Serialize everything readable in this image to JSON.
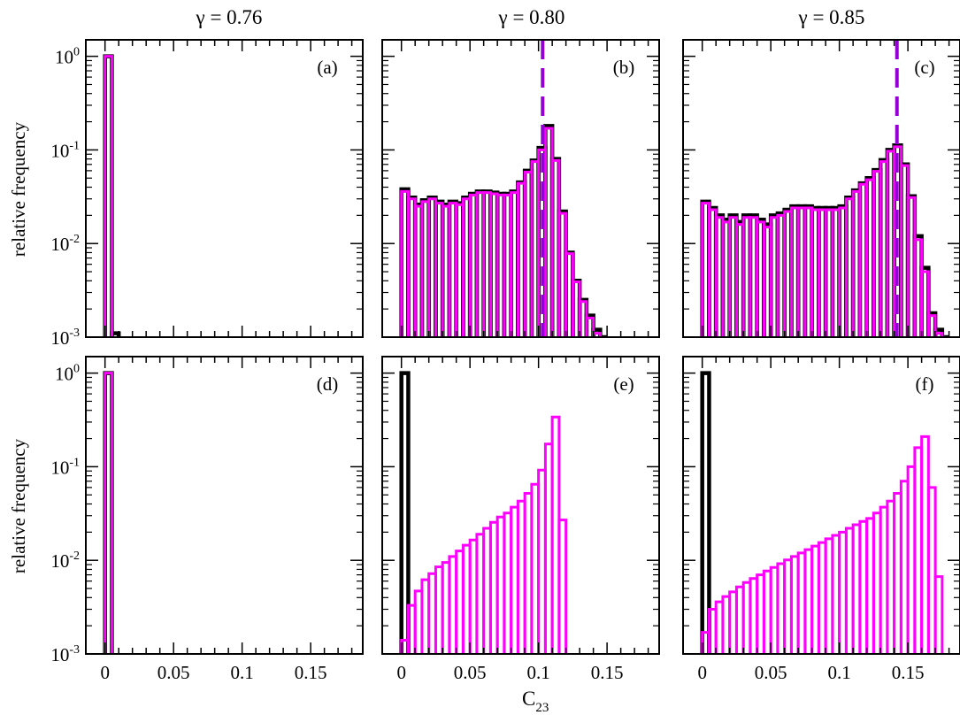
{
  "chart_data": {
    "type": "histogram-grid",
    "column_titles": [
      "γ = 0.76",
      "γ = 0.80",
      "γ = 0.85"
    ],
    "ylabel": "relative frequency",
    "xlabel": "C",
    "xlabel_subscript": "23",
    "yscale": "log",
    "ylim": [
      0.001,
      1.5
    ],
    "xlim": [
      -0.014,
      0.188
    ],
    "xticks": [
      0,
      0.05,
      0.1,
      0.15
    ],
    "xtick_labels": [
      "0",
      "0.05",
      "0.1",
      "0.15"
    ],
    "yticks": [
      0.001,
      0.01,
      0.1,
      1
    ],
    "ytick_labels": [
      {
        "base": "10",
        "exp": "-3"
      },
      {
        "base": "10",
        "exp": "-2"
      },
      {
        "base": "10",
        "exp": "-1"
      },
      {
        "base": "10",
        "exp": "0"
      }
    ],
    "bin_width": 0.005,
    "colors": {
      "black_series": "#000000",
      "magenta_series": "#ff00ff",
      "marker_line": "#9400d3"
    },
    "panels": [
      {
        "label": "(a)",
        "row": 0,
        "col": 0,
        "series": [
          {
            "color": "black",
            "values": [
              1.0,
              0.0011
            ]
          },
          {
            "color": "magenta",
            "values": [
              1.0
            ]
          }
        ]
      },
      {
        "label": "(b)",
        "row": 0,
        "col": 1,
        "vline": 0.103,
        "series": [
          {
            "color": "black",
            "values": [
              0.038,
              0.031,
              0.026,
              0.029,
              0.031,
              0.028,
              0.026,
              0.028,
              0.027,
              0.031,
              0.034,
              0.036,
              0.036,
              0.035,
              0.034,
              0.034,
              0.036,
              0.045,
              0.06,
              0.077,
              0.105,
              0.18,
              0.08,
              0.022,
              0.008,
              0.004,
              0.0025,
              0.0017,
              0.0012,
              0.001
            ]
          },
          {
            "color": "magenta",
            "values": [
              0.036,
              0.03,
              0.025,
              0.028,
              0.03,
              0.027,
              0.025,
              0.027,
              0.026,
              0.03,
              0.033,
              0.035,
              0.035,
              0.034,
              0.033,
              0.033,
              0.035,
              0.044,
              0.058,
              0.075,
              0.1,
              0.17,
              0.077,
              0.021,
              0.0078,
              0.0039,
              0.0024,
              0.0016,
              0.0011
            ]
          }
        ]
      },
      {
        "label": "(c)",
        "row": 0,
        "col": 2,
        "vline": 0.142,
        "series": [
          {
            "color": "black",
            "values": [
              0.028,
              0.024,
              0.02,
              0.018,
              0.02,
              0.017,
              0.02,
              0.02,
              0.018,
              0.016,
              0.02,
              0.021,
              0.023,
              0.025,
              0.025,
              0.025,
              0.024,
              0.024,
              0.024,
              0.024,
              0.025,
              0.031,
              0.037,
              0.044,
              0.05,
              0.061,
              0.078,
              0.1,
              0.112,
              0.07,
              0.032,
              0.012,
              0.0055,
              0.0018,
              0.0012,
              0.001
            ]
          },
          {
            "color": "magenta",
            "values": [
              0.027,
              0.023,
              0.019,
              0.017,
              0.019,
              0.016,
              0.019,
              0.019,
              0.017,
              0.015,
              0.019,
              0.02,
              0.022,
              0.024,
              0.024,
              0.024,
              0.023,
              0.023,
              0.023,
              0.023,
              0.024,
              0.03,
              0.036,
              0.043,
              0.048,
              0.059,
              0.075,
              0.097,
              0.108,
              0.068,
              0.031,
              0.011,
              0.005,
              0.0017,
              0.0011
            ]
          }
        ]
      },
      {
        "label": "(d)",
        "row": 1,
        "col": 0,
        "series": [
          {
            "color": "black",
            "values": [
              1.0
            ]
          },
          {
            "color": "magenta",
            "values": [
              1.0
            ]
          }
        ]
      },
      {
        "label": "(e)",
        "row": 1,
        "col": 1,
        "series": [
          {
            "color": "black",
            "values": [
              1.0
            ]
          },
          {
            "color": "magenta",
            "values": [
              0.0014,
              0.0033,
              0.0047,
              0.0062,
              0.0072,
              0.0085,
              0.0095,
              0.011,
              0.0126,
              0.0145,
              0.0165,
              0.019,
              0.022,
              0.0255,
              0.029,
              0.032,
              0.037,
              0.043,
              0.052,
              0.065,
              0.092,
              0.175,
              0.34,
              0.027
            ]
          }
        ]
      },
      {
        "label": "(f)",
        "row": 1,
        "col": 2,
        "series": [
          {
            "color": "black",
            "values": [
              1.0
            ]
          },
          {
            "color": "magenta",
            "values": [
              0.0017,
              0.003,
              0.0036,
              0.0041,
              0.0046,
              0.0052,
              0.0058,
              0.0064,
              0.007,
              0.0077,
              0.0084,
              0.0092,
              0.0101,
              0.011,
              0.012,
              0.013,
              0.0142,
              0.0155,
              0.017,
              0.0185,
              0.02,
              0.022,
              0.024,
              0.026,
              0.028,
              0.032,
              0.037,
              0.043,
              0.052,
              0.07,
              0.1,
              0.16,
              0.21,
              0.06,
              0.0067
            ]
          }
        ]
      }
    ]
  }
}
